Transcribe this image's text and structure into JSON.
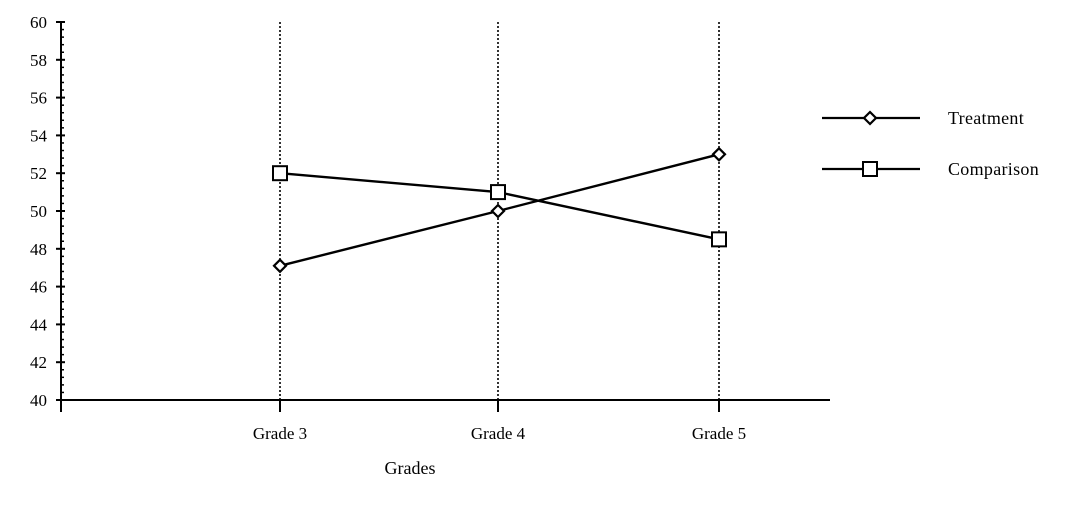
{
  "chart_data": {
    "type": "line",
    "categories": [
      "Grade 3",
      "Grade 4",
      "Grade 5"
    ],
    "series": [
      {
        "name": "Treatment",
        "marker": "diamond",
        "values": [
          47.1,
          50.0,
          53.0
        ]
      },
      {
        "name": "Comparison",
        "marker": "square",
        "values": [
          52.0,
          51.0,
          48.5
        ]
      }
    ],
    "xlabel": "Grades",
    "ylabel": "",
    "ylim": [
      40,
      60
    ],
    "yticks": [
      40,
      42,
      44,
      46,
      48,
      50,
      52,
      54,
      56,
      58,
      60
    ],
    "yminor_ticks_per_interval": 4,
    "vertical_dotted_gridlines_at_categories": true,
    "legend_position": "right",
    "colors": {
      "line": "#000000",
      "marker_fill": "#ffffff",
      "background": "#ffffff"
    }
  }
}
